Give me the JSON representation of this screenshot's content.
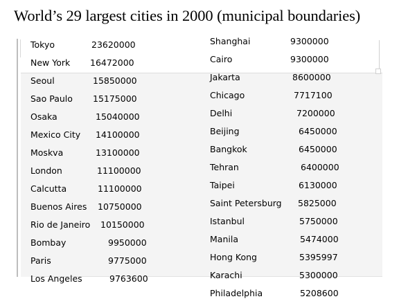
{
  "title": "World’s 29 largest cities in 2000 (municipal boundaries)",
  "left_column": [
    {
      "city": "Tokyo",
      "population": "23620000"
    },
    {
      "city": "New York",
      "population": "16472000"
    },
    {
      "city": "Seoul",
      "population": "15850000"
    },
    {
      "city": "Sao Paulo",
      "population": "15175000"
    },
    {
      "city": "Osaka",
      "population": "15040000"
    },
    {
      "city": "Mexico City",
      "population": "14100000"
    },
    {
      "city": "Moskva",
      "population": "13100000"
    },
    {
      "city": "London",
      "population": "11100000"
    },
    {
      "city": "Calcutta",
      "population": "11100000"
    },
    {
      "city": "Buenos Aires",
      "population": "10750000"
    },
    {
      "city": "Rio de Janeiro",
      "population": "10150000"
    },
    {
      "city": "Bombay",
      "population": "9950000"
    },
    {
      "city": "Paris",
      "population": "9775000"
    },
    {
      "city": "Los Angeles",
      "population": "9763600"
    }
  ],
  "right_column": [
    {
      "city": "Shanghai",
      "population": "9300000"
    },
    {
      "city": "Cairo",
      "population": "9300000"
    },
    {
      "city": "Jakarta",
      "population": "8600000"
    },
    {
      "city": "Chicago",
      "population": "7717100"
    },
    {
      "city": "Delhi",
      "population": "7200000"
    },
    {
      "city": "Beijing",
      "population": "6450000"
    },
    {
      "city": "Bangkok",
      "population": "6450000"
    },
    {
      "city": "Tehran",
      "population": "6400000"
    },
    {
      "city": "Taipei",
      "population": "6130000"
    },
    {
      "city": "Saint Petersburg",
      "population": "5825000"
    },
    {
      "city": "Istanbul",
      "population": "5750000"
    },
    {
      "city": "Manila",
      "population": "5474000"
    },
    {
      "city": "Hong Kong",
      "population": "5395997"
    },
    {
      "city": "Karachi",
      "population": "5300000"
    },
    {
      "city": "Philadelphia",
      "population": "5208600"
    }
  ]
}
